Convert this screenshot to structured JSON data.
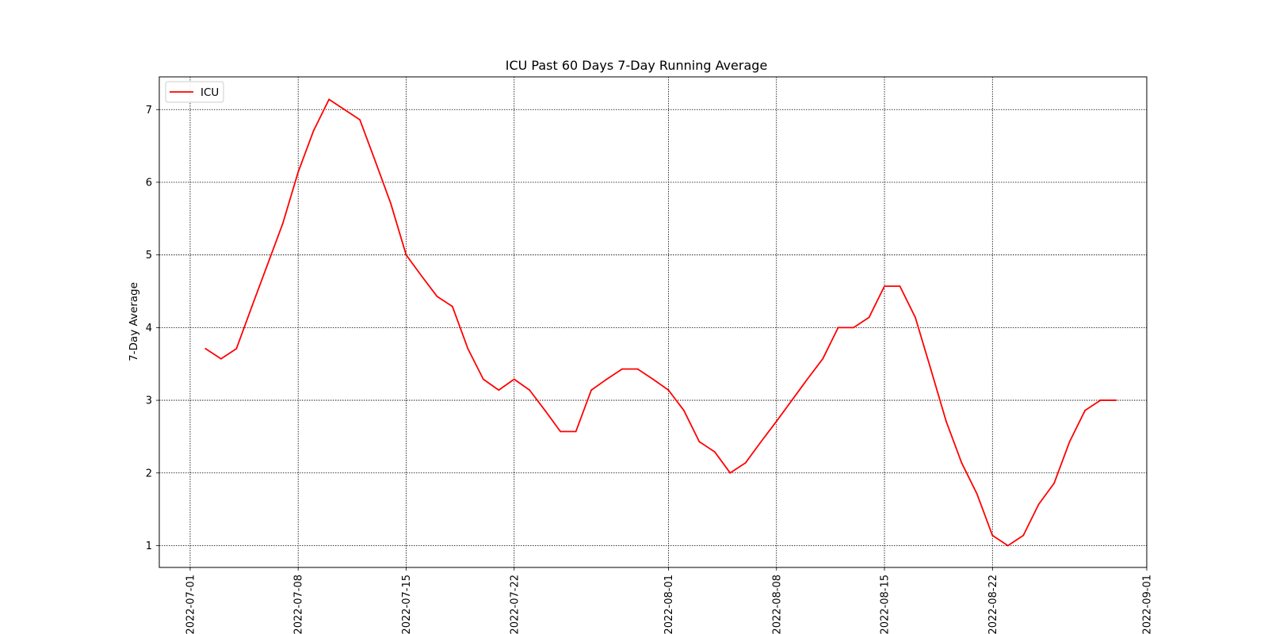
{
  "chart_data": {
    "type": "line",
    "title": "ICU Past 60 Days 7-Day Running Average",
    "xlabel": "",
    "ylabel": "7-Day Average",
    "xlim": [
      "2022-06-29",
      "2022-09-01"
    ],
    "ylim": [
      0.7,
      7.45
    ],
    "x_ticks": [
      "2022-07-01",
      "2022-07-08",
      "2022-07-15",
      "2022-07-22",
      "2022-08-01",
      "2022-08-08",
      "2022-08-15",
      "2022-08-22",
      "2022-09-01"
    ],
    "y_ticks": [
      1,
      2,
      3,
      4,
      5,
      6,
      7
    ],
    "grid": true,
    "legend": {
      "position": "top-left",
      "entries": [
        "ICU"
      ]
    },
    "series": [
      {
        "name": "ICU",
        "color": "#ff0000",
        "x": [
          "2022-07-02",
          "2022-07-03",
          "2022-07-04",
          "2022-07-05",
          "2022-07-06",
          "2022-07-07",
          "2022-07-08",
          "2022-07-09",
          "2022-07-10",
          "2022-07-11",
          "2022-07-12",
          "2022-07-13",
          "2022-07-14",
          "2022-07-15",
          "2022-07-16",
          "2022-07-17",
          "2022-07-18",
          "2022-07-19",
          "2022-07-20",
          "2022-07-21",
          "2022-07-22",
          "2022-07-23",
          "2022-07-24",
          "2022-07-25",
          "2022-07-26",
          "2022-07-27",
          "2022-07-28",
          "2022-07-29",
          "2022-07-30",
          "2022-07-31",
          "2022-08-01",
          "2022-08-02",
          "2022-08-03",
          "2022-08-04",
          "2022-08-05",
          "2022-08-06",
          "2022-08-07",
          "2022-08-08",
          "2022-08-09",
          "2022-08-10",
          "2022-08-11",
          "2022-08-12",
          "2022-08-13",
          "2022-08-14",
          "2022-08-15",
          "2022-08-16",
          "2022-08-17",
          "2022-08-18",
          "2022-08-19",
          "2022-08-20",
          "2022-08-21",
          "2022-08-22",
          "2022-08-23",
          "2022-08-24",
          "2022-08-25",
          "2022-08-26",
          "2022-08-27",
          "2022-08-28",
          "2022-08-29",
          "2022-08-30"
        ],
        "values": [
          3.71,
          3.57,
          3.71,
          4.29,
          4.86,
          5.43,
          6.14,
          6.71,
          7.14,
          7.0,
          6.86,
          6.29,
          5.71,
          5.0,
          4.71,
          4.43,
          4.29,
          3.71,
          3.29,
          3.14,
          3.29,
          3.14,
          2.86,
          2.57,
          2.57,
          3.14,
          3.29,
          3.43,
          3.43,
          3.29,
          3.14,
          2.86,
          2.43,
          2.29,
          2.0,
          2.14,
          2.43,
          2.71,
          3.0,
          3.29,
          3.57,
          4.0,
          4.0,
          4.14,
          4.57,
          4.57,
          4.14,
          3.43,
          2.71,
          2.14,
          1.71,
          1.14,
          1.0,
          1.14,
          1.57,
          1.86,
          2.43,
          2.86,
          3.0,
          3.0
        ]
      }
    ]
  }
}
